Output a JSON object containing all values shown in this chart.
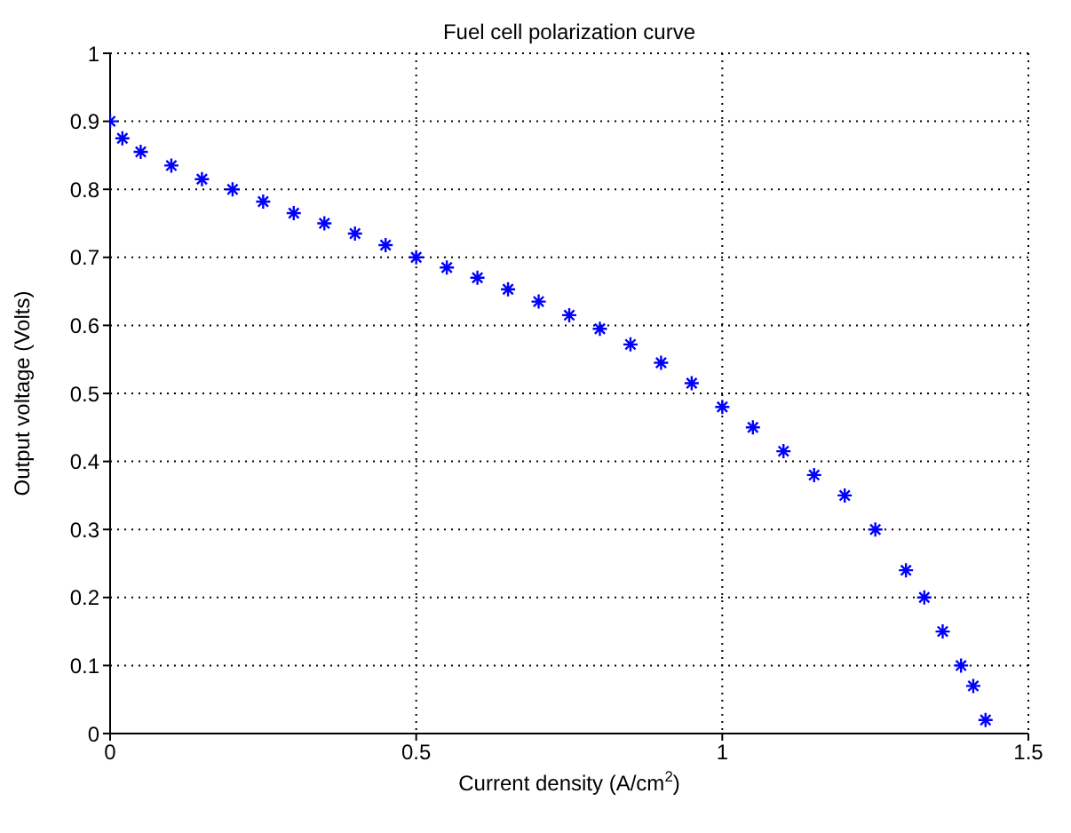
{
  "chart_data": {
    "type": "scatter",
    "title": "Fuel cell polarization curve",
    "xlabel": "Current density (A/cm$^{2}$)",
    "ylabel": "Output voltage (Volts)",
    "series": [
      {
        "color": "#0000ff",
        "x": [
          0,
          0.02,
          0.05,
          0.1,
          0.15,
          0.2,
          0.25,
          0.3,
          0.35,
          0.4,
          0.45,
          0.5,
          0.55,
          0.6,
          0.65,
          0.7,
          0.75,
          0.8,
          0.85,
          0.9,
          0.95,
          1.0,
          1.05,
          1.1,
          1.15,
          1.2,
          1.25,
          1.3,
          1.33,
          1.36,
          1.39,
          1.41,
          1.43
        ],
        "values": [
          0.9,
          0.875,
          0.855,
          0.835,
          0.815,
          0.8,
          0.782,
          0.765,
          0.75,
          0.735,
          0.718,
          0.7,
          0.685,
          0.67,
          0.653,
          0.635,
          0.615,
          0.595,
          0.572,
          0.545,
          0.515,
          0.48,
          0.45,
          0.415,
          0.38,
          0.35,
          0.3,
          0.24,
          0.2,
          0.15,
          0.1,
          0.07,
          0.02
        ]
      }
    ],
    "xlim": [
      0,
      1.5
    ],
    "xticks": [
      0,
      0.5,
      1,
      1.5
    ],
    "ylim": [
      0,
      1
    ],
    "yticks": [
      0,
      0.1,
      0.2,
      0.3,
      0.4,
      0.5,
      0.6,
      0.7,
      0.8,
      0.9,
      1
    ],
    "grid": true,
    "marker": "cross",
    "legend": false
  }
}
